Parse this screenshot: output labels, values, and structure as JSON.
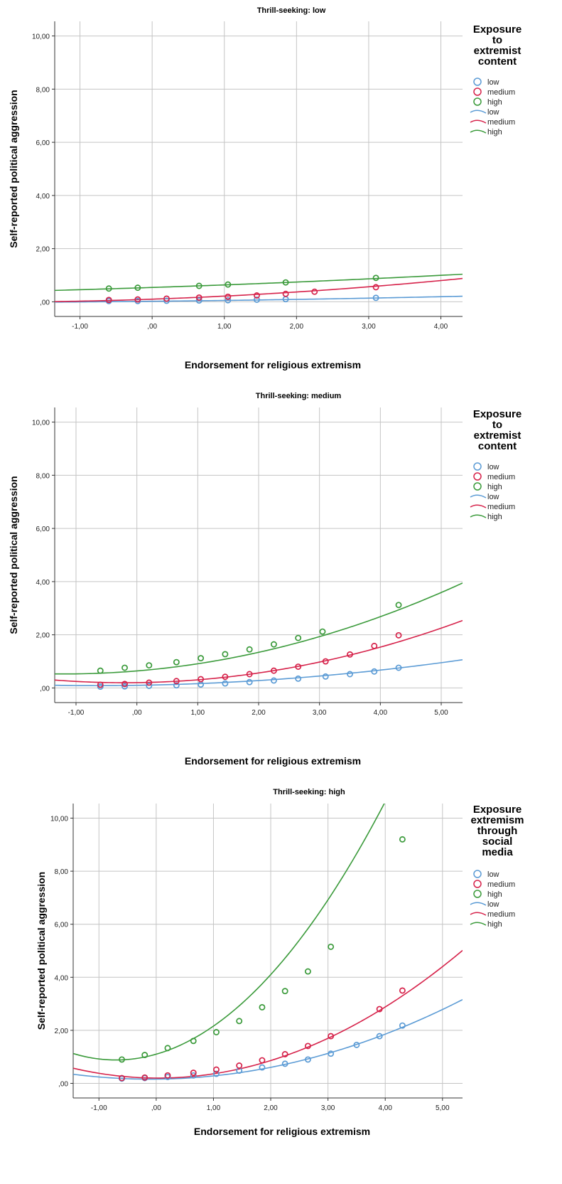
{
  "colors": {
    "low": "#5b9bd5",
    "medium": "#d6224a",
    "high": "#3a9a3a"
  },
  "chart_data": [
    {
      "type": "scatter",
      "title": "Thrill-seeking: low",
      "xlabel": "Endorsement for religious extremism",
      "ylabel": "Self-reported political aggression",
      "xlim": [
        -1.35,
        4.3
      ],
      "ylim": [
        -0.55,
        10.55
      ],
      "xticks": [
        -1,
        0,
        1,
        2,
        3,
        4
      ],
      "xtick_labels": [
        "-1,00",
        ",00",
        "1,00",
        "2,00",
        "3,00",
        "4,00"
      ],
      "yticks": [
        0,
        2,
        4,
        6,
        8,
        10
      ],
      "ytick_labels": [
        ",00",
        "2,00",
        "4,00",
        "6,00",
        "8,00",
        "10,00"
      ],
      "grid": true,
      "legend_position": "right",
      "legend_title": "Exposure to extremist content",
      "legend_title_lines": [
        "Exposure",
        "to",
        "extremist",
        "content"
      ],
      "legend_entries": [
        "low",
        "medium",
        "high",
        "low",
        "medium",
        "high"
      ],
      "series": [
        {
          "name": "low",
          "x": [
            -0.6,
            -0.2,
            0.2,
            0.65,
            1.05,
            1.45,
            1.85,
            3.1
          ],
          "y": [
            0.03,
            0.03,
            0.04,
            0.05,
            0.06,
            0.08,
            0.1,
            0.15
          ],
          "fit": [
            0.02,
            0.028,
            0.0038
          ]
        },
        {
          "name": "medium",
          "x": [
            -0.6,
            -0.2,
            0.2,
            0.65,
            1.05,
            1.45,
            1.85,
            2.25,
            3.1
          ],
          "y": [
            0.07,
            0.09,
            0.12,
            0.16,
            0.19,
            0.24,
            0.3,
            0.38,
            0.55
          ],
          "fit": [
            0.1,
            0.095,
            0.02
          ]
        },
        {
          "name": "high",
          "x": [
            -0.6,
            -0.2,
            0.65,
            1.05,
            1.85,
            3.1
          ],
          "y": [
            0.5,
            0.53,
            0.6,
            0.65,
            0.73,
            0.9
          ],
          "fit": [
            0.54,
            0.09,
            0.006
          ]
        }
      ]
    },
    {
      "type": "scatter",
      "title": "Thrill-seeking: medium",
      "xlabel": "Endorsement for religious extremism",
      "ylabel": "Self-reported political aggression",
      "xlim": [
        -1.35,
        5.35
      ],
      "ylim": [
        -0.55,
        10.55
      ],
      "xticks": [
        -1,
        0,
        1,
        2,
        3,
        4,
        5
      ],
      "xtick_labels": [
        "-1,00",
        ",00",
        "1,00",
        "2,00",
        "3,00",
        "4,00",
        "5,00"
      ],
      "yticks": [
        0,
        2,
        4,
        6,
        8,
        10
      ],
      "ytick_labels": [
        ",00",
        "2,00",
        "4,00",
        "6,00",
        "8,00",
        "10,00"
      ],
      "grid": true,
      "legend_position": "right",
      "legend_title": "Exposure to extremist content",
      "legend_title_lines": [
        "Exposure",
        "to",
        "extremist",
        "content"
      ],
      "legend_entries": [
        "low",
        "medium",
        "high",
        "low",
        "medium",
        "high"
      ],
      "series": [
        {
          "name": "low",
          "x": [
            -0.6,
            -0.2,
            0.2,
            0.65,
            1.05,
            1.45,
            1.85,
            2.25,
            2.65,
            3.1,
            3.5,
            3.9,
            4.3
          ],
          "y": [
            0.05,
            0.06,
            0.08,
            0.1,
            0.13,
            0.17,
            0.22,
            0.28,
            0.35,
            0.43,
            0.52,
            0.62,
            0.76
          ],
          "fit": [
            0.1,
            0.035,
            0.027
          ]
        },
        {
          "name": "medium",
          "x": [
            -0.6,
            -0.2,
            0.2,
            0.65,
            1.05,
            1.45,
            1.85,
            2.25,
            2.65,
            3.1,
            3.5,
            3.9,
            4.3
          ],
          "y": [
            0.12,
            0.15,
            0.2,
            0.26,
            0.33,
            0.42,
            0.52,
            0.65,
            0.8,
            1.0,
            1.26,
            1.58,
            1.98
          ],
          "fit": [
            0.2,
            0.03,
            0.076
          ]
        },
        {
          "name": "high",
          "x": [
            -0.6,
            -0.2,
            0.2,
            0.65,
            1.05,
            1.45,
            1.85,
            2.25,
            2.65,
            3.05,
            4.3
          ],
          "y": [
            0.65,
            0.76,
            0.85,
            0.97,
            1.12,
            1.27,
            1.45,
            1.64,
            1.88,
            2.12,
            3.12
          ],
          "fit": [
            0.64,
            0.19,
            0.08
          ]
        }
      ]
    },
    {
      "type": "scatter",
      "title": "Thrill-seeking: high",
      "xlabel": "Endorsement for religious extremism",
      "ylabel": "Self-reported political aggression",
      "xlim": [
        -1.45,
        5.35
      ],
      "ylim": [
        -0.55,
        10.55
      ],
      "xticks": [
        -1,
        0,
        1,
        2,
        3,
        4,
        5
      ],
      "xtick_labels": [
        "-1,00",
        ",00",
        "1,00",
        "2,00",
        "3,00",
        "4,00",
        "5,00"
      ],
      "yticks": [
        0,
        2,
        4,
        6,
        8,
        10
      ],
      "ytick_labels": [
        ",00",
        "2,00",
        "4,00",
        "6,00",
        "8,00",
        "10,00"
      ],
      "grid": true,
      "legend_position": "right",
      "legend_title": "Exposure extremism through social media",
      "legend_title_lines": [
        "Exposure",
        "extremism",
        "through",
        "social",
        "media"
      ],
      "legend_entries": [
        "low",
        "medium",
        "high",
        "low",
        "medium",
        "high"
      ],
      "series": [
        {
          "name": "low",
          "x": [
            -0.6,
            -0.2,
            0.2,
            0.65,
            1.05,
            1.45,
            1.85,
            2.25,
            2.65,
            3.05,
            3.5,
            3.9,
            4.3
          ],
          "y": [
            0.18,
            0.2,
            0.24,
            0.3,
            0.36,
            0.48,
            0.6,
            0.74,
            0.9,
            1.12,
            1.45,
            1.78,
            2.18
          ],
          "fit": [
            0.16,
            0.02,
            0.101
          ]
        },
        {
          "name": "medium",
          "x": [
            -0.6,
            -0.2,
            0.2,
            0.65,
            1.05,
            1.45,
            1.85,
            2.25,
            2.65,
            3.05,
            3.9,
            4.3
          ],
          "y": [
            0.2,
            0.22,
            0.3,
            0.4,
            0.52,
            0.67,
            0.87,
            1.1,
            1.41,
            1.78,
            2.8,
            3.5
          ],
          "fit": [
            0.2,
            -0.01,
            0.17
          ]
        },
        {
          "name": "high",
          "x": [
            -0.6,
            -0.2,
            0.2,
            0.65,
            1.05,
            1.45,
            1.85,
            2.25,
            2.65,
            3.05,
            4.3
          ],
          "y": [
            0.9,
            1.07,
            1.33,
            1.6,
            1.93,
            2.35,
            2.87,
            3.48,
            4.22,
            5.15,
            9.2
          ],
          "fit": [
            1.1,
            0.62,
            0.44
          ]
        }
      ]
    }
  ]
}
